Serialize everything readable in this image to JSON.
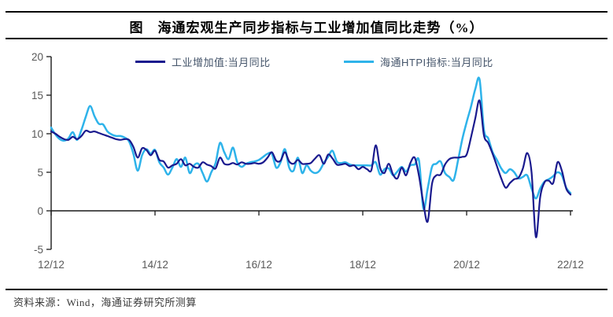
{
  "title": "图　海通宏观生产同步指标与工业增加值同比走势（%）",
  "source_note": "资料来源：Wind，海通证券研究所测算",
  "colors": {
    "industrial_line": "#1a1a8e",
    "htpi_line": "#2eb3ea",
    "axis": "#1a1a1a",
    "tick_label": "#595959",
    "legend_text": "#44546A"
  },
  "chart_data": {
    "type": "line",
    "title": "海通宏观生产同步指标与工业增加值同比走势（%）",
    "frequency": "monthly",
    "x_start": "2012/12",
    "x_end": "2022/12",
    "x_tick_labels": [
      "12/12",
      "14/12",
      "16/12",
      "18/12",
      "20/12",
      "22/12"
    ],
    "y_ticks": [
      -5,
      0,
      5,
      10,
      15,
      20
    ],
    "ylim": [
      -5,
      20
    ],
    "grid": false,
    "legend_position": "top",
    "series": [
      {
        "name": "工业增加值:当月同比",
        "color": "#1a1a8e",
        "values": [
          10.3,
          10.0,
          9.6,
          9.3,
          9.2,
          9.6,
          9.3,
          9.7,
          10.4,
          10.2,
          10.3,
          10.1,
          9.9,
          9.7,
          9.5,
          9.3,
          9.2,
          9.3,
          9.2,
          8.3,
          6.9,
          8.1,
          7.9,
          7.2,
          7.8,
          6.6,
          6.4,
          5.6,
          5.9,
          6.1,
          6.7,
          5.9,
          6.1,
          5.7,
          5.6,
          6.3,
          6.0,
          5.8,
          5.5,
          6.9,
          6.1,
          6.0,
          6.2,
          6.0,
          6.3,
          6.1,
          6.1,
          6.2,
          6.1,
          6.3,
          6.9,
          7.6,
          6.5,
          6.5,
          7.6,
          6.4,
          6.1,
          6.6,
          6.1,
          6.1,
          6.2,
          6.8,
          7.2,
          6.1,
          7.3,
          6.8,
          6.0,
          6.0,
          6.1,
          5.8,
          5.9,
          5.4,
          5.7,
          5.4,
          5.3,
          8.5,
          5.6,
          4.9,
          6.1,
          4.7,
          4.2,
          5.6,
          4.6,
          6.2,
          6.9,
          4.5,
          1.0,
          -1.4,
          3.5,
          4.6,
          4.7,
          6.0,
          6.7,
          6.9,
          6.9,
          7.0,
          7.3,
          9.5,
          12.0,
          14.3,
          9.8,
          8.8,
          7.4,
          5.8,
          4.2,
          3.0,
          3.6,
          4.1,
          4.3,
          5.5,
          7.5,
          5.0,
          -3.4,
          1.8,
          3.7,
          3.9,
          3.6,
          6.3,
          5.2,
          2.9,
          2.1
        ]
      },
      {
        "name": "海通HTPI指标:当月同比",
        "color": "#2eb3ea",
        "values": [
          10.8,
          9.9,
          9.3,
          9.1,
          9.4,
          10.2,
          9.2,
          10.5,
          12.2,
          13.6,
          12.3,
          11.3,
          11.2,
          10.3,
          9.9,
          9.7,
          9.7,
          9.5,
          9.0,
          7.4,
          5.2,
          7.2,
          8.0,
          7.4,
          7.9,
          6.3,
          5.6,
          4.7,
          5.6,
          6.7,
          5.7,
          6.9,
          4.9,
          5.9,
          6.1,
          4.9,
          3.8,
          5.0,
          6.2,
          8.8,
          7.6,
          6.7,
          8.2,
          6.3,
          5.7,
          6.1,
          6.3,
          6.4,
          6.6,
          7.0,
          7.4,
          7.4,
          5.6,
          6.3,
          8.0,
          5.6,
          5.2,
          6.9,
          4.9,
          5.9,
          5.2,
          4.9,
          5.2,
          6.2,
          7.0,
          7.8,
          6.4,
          6.2,
          6.3,
          6.0,
          5.9,
          5.9,
          5.9,
          5.9,
          5.9,
          6.3,
          4.7,
          5.4,
          5.5,
          4.6,
          5.1,
          5.7,
          5.1,
          5.9,
          6.0,
          6.5,
          0.3,
          2.9,
          5.7,
          6.1,
          6.4,
          4.9,
          4.4,
          4.0,
          6.5,
          9.3,
          11.5,
          13.5,
          15.8,
          17.0,
          10.5,
          9.4,
          7.6,
          6.6,
          5.5,
          4.9,
          5.4,
          5.0,
          4.2,
          4.4,
          4.6,
          2.9,
          1.6,
          2.9,
          3.8,
          4.1,
          4.5,
          5.0,
          4.6,
          3.0,
          2.3
        ]
      }
    ]
  }
}
